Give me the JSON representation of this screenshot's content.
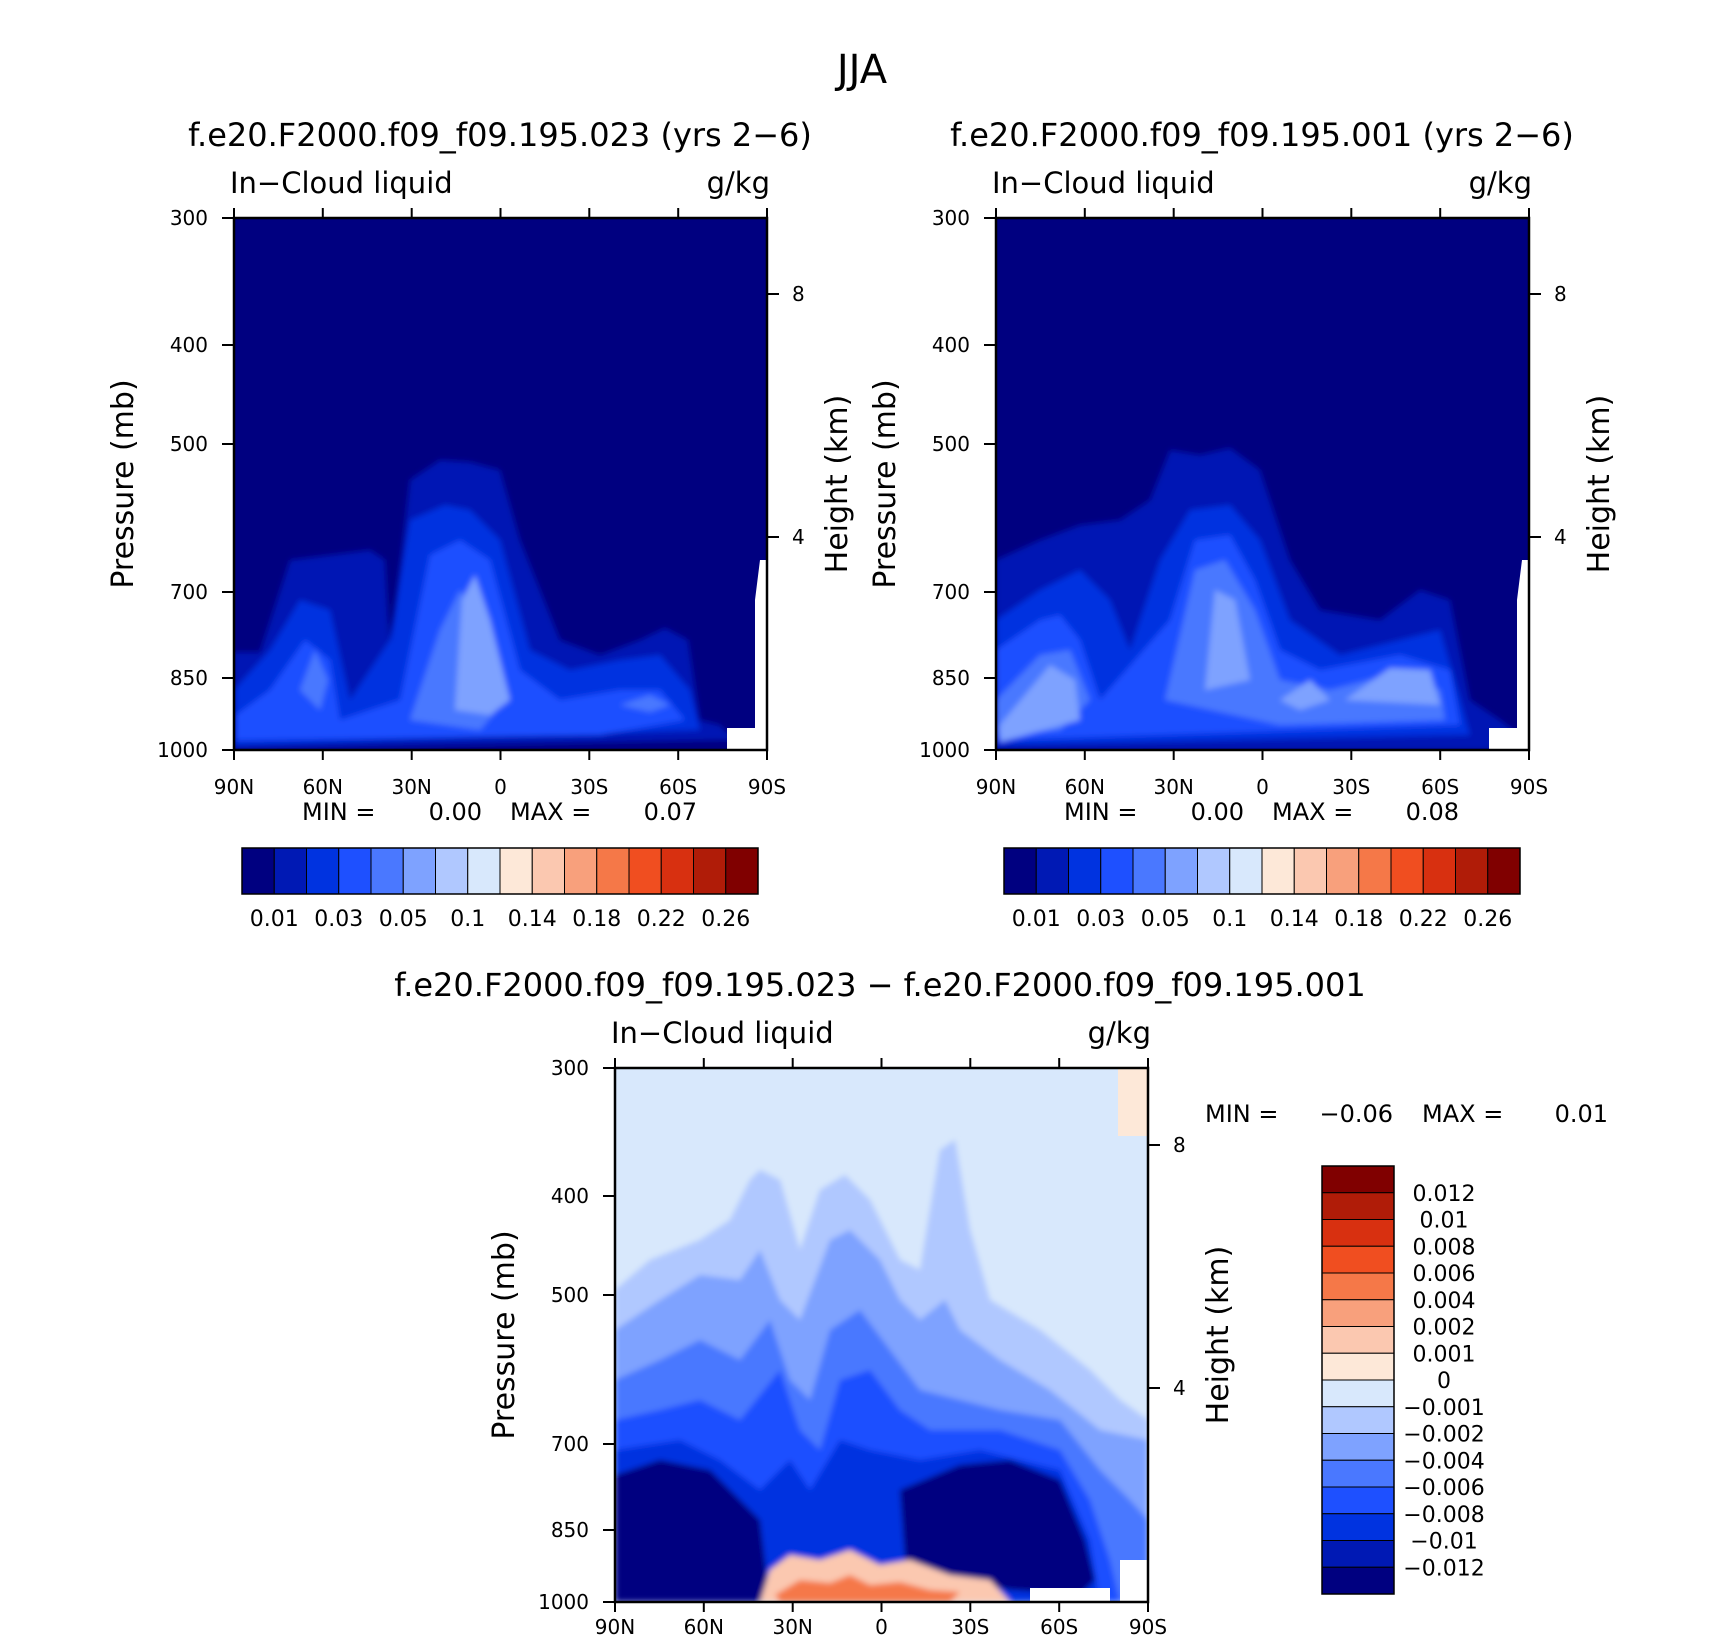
{
  "figure_title": "JJA",
  "chart_data": [
    {
      "type": "heatmap",
      "id": "panel1",
      "title": "f.e20.F2000.f09_f09.195.023 (yrs 2−6)",
      "left_label": "In−Cloud liquid",
      "right_label": "g/kg",
      "xlabel": "",
      "ylabel": "Pressure (mb)",
      "y2label": "Height (km)",
      "x_ticks": [
        "90N",
        "60N",
        "30N",
        "0",
        "30S",
        "60S",
        "90S"
      ],
      "x_range": [
        90,
        -90
      ],
      "y_ticks": [
        "300",
        "400",
        "500",
        "700",
        "850",
        "1000"
      ],
      "y_range_mb": [
        300,
        1000
      ],
      "y2_ticks": [
        "8",
        "4"
      ],
      "stats": {
        "min_label": "MIN =",
        "min": "0.00",
        "max_label": "MAX =",
        "max": "0.07"
      },
      "colorbar": {
        "orientation": "horizontal",
        "labels": [
          "0.01",
          "0.03",
          "0.05",
          "0.1",
          "0.14",
          "0.18",
          "0.22",
          "0.26"
        ],
        "colors": [
          "#000080",
          "#0019b4",
          "#0033e0",
          "#1e50ff",
          "#4a78ff",
          "#7ea2ff",
          "#b0c8ff",
          "#d8e8fc",
          "#fde8d8",
          "#fbc8b0",
          "#f8a07c",
          "#f57848",
          "#f04e20",
          "#d83010",
          "#b01c08",
          "#800000"
        ]
      }
    },
    {
      "type": "heatmap",
      "id": "panel2",
      "title": "f.e20.F2000.f09_f09.195.001 (yrs 2−6)",
      "left_label": "In−Cloud liquid",
      "right_label": "g/kg",
      "xlabel": "",
      "ylabel": "Pressure (mb)",
      "y2label": "Height (km)",
      "x_ticks": [
        "90N",
        "60N",
        "30N",
        "0",
        "30S",
        "60S",
        "90S"
      ],
      "x_range": [
        90,
        -90
      ],
      "y_ticks": [
        "300",
        "400",
        "500",
        "700",
        "850",
        "1000"
      ],
      "y_range_mb": [
        300,
        1000
      ],
      "y2_ticks": [
        "8",
        "4"
      ],
      "stats": {
        "min_label": "MIN =",
        "min": "0.00",
        "max_label": "MAX =",
        "max": "0.08"
      },
      "colorbar": {
        "orientation": "horizontal",
        "labels": [
          "0.01",
          "0.03",
          "0.05",
          "0.1",
          "0.14",
          "0.18",
          "0.22",
          "0.26"
        ],
        "colors": [
          "#000080",
          "#0019b4",
          "#0033e0",
          "#1e50ff",
          "#4a78ff",
          "#7ea2ff",
          "#b0c8ff",
          "#d8e8fc",
          "#fde8d8",
          "#fbc8b0",
          "#f8a07c",
          "#f57848",
          "#f04e20",
          "#d83010",
          "#b01c08",
          "#800000"
        ]
      }
    },
    {
      "type": "heatmap",
      "id": "panel3",
      "title": "f.e20.F2000.f09_f09.195.023 − f.e20.F2000.f09_f09.195.001",
      "left_label": "In−Cloud liquid",
      "right_label": "g/kg",
      "xlabel": "",
      "ylabel": "Pressure (mb)",
      "y2label": "Height (km)",
      "x_ticks": [
        "90N",
        "60N",
        "30N",
        "0",
        "30S",
        "60S",
        "90S"
      ],
      "x_range": [
        90,
        -90
      ],
      "y_ticks": [
        "300",
        "400",
        "500",
        "700",
        "850",
        "1000"
      ],
      "y_range_mb": [
        300,
        1000
      ],
      "y2_ticks": [
        "8",
        "4"
      ],
      "stats": {
        "min_label": "MIN =",
        "min": "−0.06",
        "max_label": "MAX =",
        "max": "0.01"
      },
      "colorbar": {
        "orientation": "vertical",
        "labels": [
          "0.012",
          "0.01",
          "0.008",
          "0.006",
          "0.004",
          "0.002",
          "0.001",
          "0",
          "−0.001",
          "−0.002",
          "−0.004",
          "−0.006",
          "−0.008",
          "−0.01",
          "−0.012"
        ],
        "colors": [
          "#800000",
          "#b01c08",
          "#d83010",
          "#f04e20",
          "#f57848",
          "#f8a07c",
          "#fbc8b0",
          "#fde8d8",
          "#d8e8fc",
          "#b0c8ff",
          "#7ea2ff",
          "#4a78ff",
          "#1e50ff",
          "#0033e0",
          "#0019b4",
          "#000080"
        ]
      }
    }
  ]
}
